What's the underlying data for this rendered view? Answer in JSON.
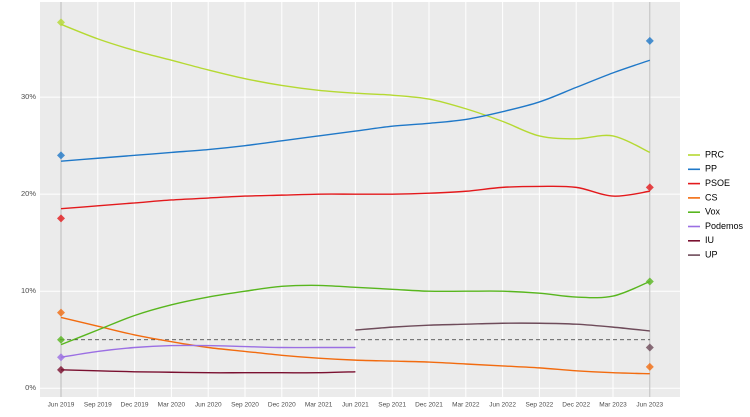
{
  "chart_data": {
    "type": "line",
    "x": [
      "Jun 2019",
      "Sep 2019",
      "Dec 2019",
      "Mar 2020",
      "Jun 2020",
      "Sep 2020",
      "Dec 2020",
      "Mar 2021",
      "Jun 2021",
      "Sep 2021",
      "Dec 2021",
      "Mar 2022",
      "Jun 2022",
      "Sep 2022",
      "Dec 2022",
      "Mar 2023",
      "Jun 2023"
    ],
    "ylim": [
      -0.9,
      39.8
    ],
    "yticks": [
      {
        "value": 0,
        "label": "0%"
      },
      {
        "value": 10,
        "label": "10%"
      },
      {
        "value": 20,
        "label": "20%"
      },
      {
        "value": 30,
        "label": "30%"
      }
    ],
    "threshold": 5,
    "grid": true,
    "legend": "right",
    "series": [
      {
        "name": "PRC",
        "color": "#b5d932",
        "values": [
          37.5,
          36,
          34.8,
          33.8,
          32.8,
          31.9,
          31.2,
          30.7,
          30.4,
          30.2,
          29.8,
          28.8,
          27.5,
          26,
          25.7,
          26,
          24.3
        ],
        "results": [
          37.7,
          null
        ]
      },
      {
        "name": "PP",
        "color": "#1f78c8",
        "values": [
          23.4,
          23.7,
          24,
          24.3,
          24.6,
          25,
          25.5,
          26,
          26.5,
          27,
          27.3,
          27.7,
          28.5,
          29.5,
          31,
          32.5,
          33.8
        ],
        "results": [
          24,
          35.8
        ]
      },
      {
        "name": "PSOE",
        "color": "#e3191c",
        "values": [
          18.5,
          18.8,
          19.1,
          19.4,
          19.6,
          19.8,
          19.9,
          20,
          20,
          20,
          20.1,
          20.3,
          20.7,
          20.8,
          20.7,
          19.8,
          20.3
        ],
        "results": [
          17.5,
          20.7
        ]
      },
      {
        "name": "CS",
        "color": "#f26b0f",
        "values": [
          7.3,
          6.4,
          5.5,
          4.8,
          4.2,
          3.8,
          3.4,
          3.1,
          2.9,
          2.8,
          2.7,
          2.5,
          2.3,
          2.1,
          1.8,
          1.6,
          1.5
        ],
        "results": [
          7.8,
          2.2
        ]
      },
      {
        "name": "Vox",
        "color": "#58b61e",
        "values": [
          4.5,
          6,
          7.5,
          8.6,
          9.4,
          10,
          10.5,
          10.6,
          10.4,
          10.2,
          10,
          10,
          10,
          9.8,
          9.4,
          9.5,
          11
        ],
        "results": [
          5,
          11
        ]
      },
      {
        "name": "Podemos",
        "color": "#9b6fe3",
        "values": [
          3.2,
          3.8,
          4.2,
          4.4,
          4.4,
          4.3,
          4.2,
          4.2,
          4.2,
          null,
          null,
          null,
          null,
          null,
          null,
          null,
          null
        ],
        "results": [
          3.2,
          null
        ]
      },
      {
        "name": "IU",
        "color": "#7a1030",
        "values": [
          1.9,
          1.8,
          1.7,
          1.65,
          1.6,
          1.6,
          1.6,
          1.6,
          1.7,
          null,
          null,
          null,
          null,
          null,
          null,
          null,
          null
        ],
        "results": [
          1.9,
          null
        ]
      },
      {
        "name": "UP",
        "color": "#6e4b5a",
        "values": [
          null,
          null,
          null,
          null,
          null,
          null,
          null,
          null,
          6,
          6.3,
          6.5,
          6.6,
          6.7,
          6.7,
          6.6,
          6.3,
          5.9
        ],
        "results": [
          null,
          4.2
        ]
      }
    ]
  }
}
